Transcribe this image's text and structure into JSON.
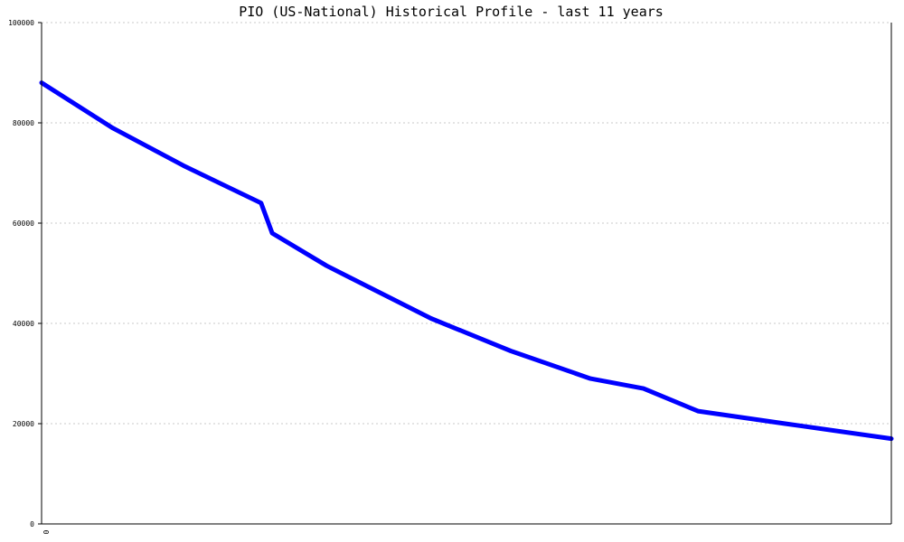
{
  "chart_data": {
    "type": "line",
    "title": "PIO (US-National) Historical Profile - last 11 years",
    "xlabel": "",
    "ylabel": "",
    "x_tick_labels": [
      "0"
    ],
    "y_tick_labels": [
      "0",
      "20000",
      "40000",
      "60000",
      "80000",
      "100000"
    ],
    "ylim": [
      0,
      100000
    ],
    "xlim": [
      0,
      1
    ],
    "grid": true,
    "series": [
      {
        "color": "#0000ff",
        "x": [
          0,
          0.0833,
          0.1667,
          0.2583,
          0.2714,
          0.3354,
          0.4583,
          0.5521,
          0.6458,
          0.7083,
          0.7724,
          0.875,
          1.0
        ],
        "values": [
          88000,
          79000,
          71500,
          64000,
          58000,
          51500,
          41000,
          34500,
          29000,
          27000,
          22500,
          20000,
          17000
        ]
      }
    ]
  }
}
